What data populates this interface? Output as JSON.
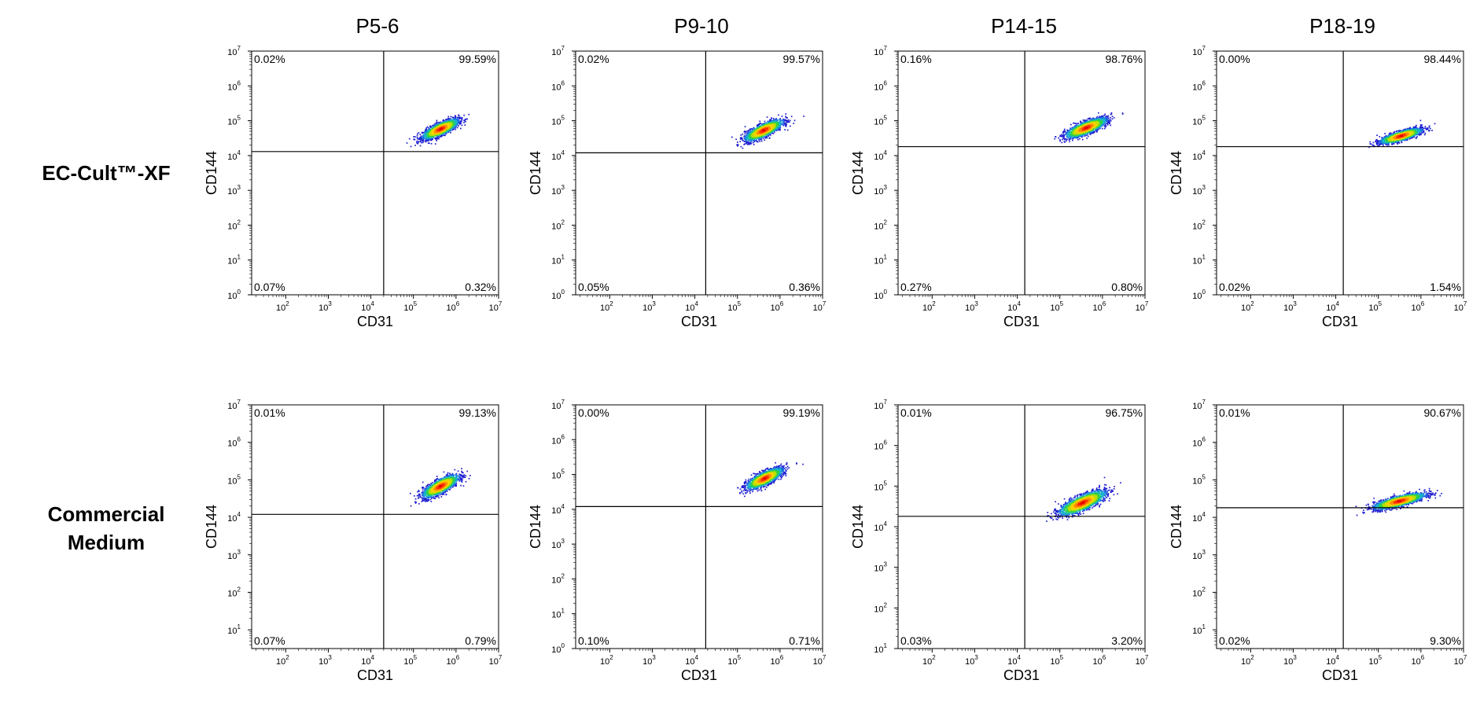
{
  "columns": [
    "P5-6",
    "P9-10",
    "P14-15",
    "P18-19"
  ],
  "rows": [
    "EC-Cult™-XF",
    "Commercial\nMedium"
  ],
  "chart_data": [
    {
      "type": "scatter",
      "row": "EC-Cult™-XF",
      "column": "P5-6",
      "xlabel": "CD31",
      "ylabel": "CD144",
      "x_log_range": [
        1.2,
        7
      ],
      "y_log_range": [
        0,
        7
      ],
      "x_ticks": [
        2,
        3,
        4,
        5,
        6,
        7
      ],
      "y_ticks": [
        0,
        1,
        2,
        3,
        4,
        5,
        6,
        7
      ],
      "gate": {
        "x": 20000,
        "y": 13000
      },
      "quadrants": {
        "ul": "0.02%",
        "ur": "99.59%",
        "ll": "0.07%",
        "lr": "0.32%"
      },
      "population_center": {
        "x": 420000,
        "y": 60000
      },
      "spread": {
        "x": 0.21,
        "y": 0.2
      }
    },
    {
      "type": "scatter",
      "row": "EC-Cult™-XF",
      "column": "P9-10",
      "xlabel": "CD31",
      "ylabel": "CD144",
      "x_log_range": [
        1.2,
        7
      ],
      "y_log_range": [
        0,
        7
      ],
      "x_ticks": [
        2,
        3,
        4,
        5,
        6,
        7
      ],
      "y_ticks": [
        0,
        1,
        2,
        3,
        4,
        5,
        6,
        7
      ],
      "gate": {
        "x": 18000,
        "y": 12000
      },
      "quadrants": {
        "ul": "0.02%",
        "ur": "99.57%",
        "ll": "0.05%",
        "lr": "0.36%"
      },
      "population_center": {
        "x": 400000,
        "y": 55000
      },
      "spread": {
        "x": 0.22,
        "y": 0.21
      }
    },
    {
      "type": "scatter",
      "row": "EC-Cult™-XF",
      "column": "P14-15",
      "xlabel": "CD31",
      "ylabel": "CD144",
      "x_log_range": [
        1.2,
        7
      ],
      "y_log_range": [
        0,
        7
      ],
      "x_ticks": [
        2,
        3,
        4,
        5,
        6,
        7
      ],
      "y_ticks": [
        0,
        1,
        2,
        3,
        4,
        5,
        6,
        7
      ],
      "gate": {
        "x": 15000,
        "y": 18000
      },
      "quadrants": {
        "ul": "0.16%",
        "ur": "98.76%",
        "ll": "0.27%",
        "lr": "0.80%"
      },
      "population_center": {
        "x": 400000,
        "y": 65000
      },
      "spread": {
        "x": 0.24,
        "y": 0.2
      }
    },
    {
      "type": "scatter",
      "row": "EC-Cult™-XF",
      "column": "P18-19",
      "xlabel": "CD31",
      "ylabel": "CD144",
      "x_log_range": [
        1.2,
        7
      ],
      "y_log_range": [
        0,
        7
      ],
      "x_ticks": [
        2,
        3,
        4,
        5,
        6,
        7
      ],
      "y_ticks": [
        0,
        1,
        2,
        3,
        4,
        5,
        6,
        7
      ],
      "gate": {
        "x": 15000,
        "y": 18000
      },
      "quadrants": {
        "ul": "0.00%",
        "ur": "98.44%",
        "ll": "0.02%",
        "lr": "1.54%"
      },
      "population_center": {
        "x": 330000,
        "y": 38000
      },
      "spread": {
        "x": 0.24,
        "y": 0.15
      }
    },
    {
      "type": "scatter",
      "row": "Commercial Medium",
      "column": "P5-6",
      "xlabel": "CD31",
      "ylabel": "CD144",
      "x_log_range": [
        1.2,
        7
      ],
      "y_log_range": [
        0.5,
        7
      ],
      "x_ticks": [
        2,
        3,
        4,
        5,
        6,
        7
      ],
      "y_ticks": [
        1,
        2,
        3,
        4,
        5,
        6,
        7
      ],
      "gate": {
        "x": 20000,
        "y": 12000
      },
      "quadrants": {
        "ul": "0.01%",
        "ur": "99.13%",
        "ll": "0.07%",
        "lr": "0.79%"
      },
      "population_center": {
        "x": 420000,
        "y": 70000
      },
      "spread": {
        "x": 0.21,
        "y": 0.21
      }
    },
    {
      "type": "scatter",
      "row": "Commercial Medium",
      "column": "P9-10",
      "xlabel": "CD31",
      "ylabel": "CD144",
      "x_log_range": [
        1.2,
        7
      ],
      "y_log_range": [
        0,
        7
      ],
      "x_ticks": [
        2,
        3,
        4,
        5,
        6,
        7
      ],
      "y_ticks": [
        0,
        1,
        2,
        3,
        4,
        5,
        6,
        7
      ],
      "gate": {
        "x": 18000,
        "y": 12000
      },
      "quadrants": {
        "ul": "0.00%",
        "ur": "99.19%",
        "ll": "0.10%",
        "lr": "0.71%"
      },
      "population_center": {
        "x": 420000,
        "y": 80000
      },
      "spread": {
        "x": 0.21,
        "y": 0.21
      }
    },
    {
      "type": "scatter",
      "row": "Commercial Medium",
      "column": "P14-15",
      "xlabel": "CD31",
      "ylabel": "CD144",
      "x_log_range": [
        1.2,
        7
      ],
      "y_log_range": [
        1,
        7
      ],
      "x_ticks": [
        2,
        3,
        4,
        5,
        6,
        7
      ],
      "y_ticks": [
        1,
        2,
        3,
        4,
        5,
        6,
        7
      ],
      "gate": {
        "x": 15000,
        "y": 18000
      },
      "quadrants": {
        "ul": "0.01%",
        "ur": "96.75%",
        "ll": "0.03%",
        "lr": "3.20%"
      },
      "population_center": {
        "x": 330000,
        "y": 40000
      },
      "spread": {
        "x": 0.27,
        "y": 0.21
      }
    },
    {
      "type": "scatter",
      "row": "Commercial Medium",
      "column": "P18-19",
      "xlabel": "CD31",
      "ylabel": "CD144",
      "x_log_range": [
        1.2,
        7
      ],
      "y_log_range": [
        0.5,
        7
      ],
      "x_ticks": [
        2,
        3,
        4,
        5,
        6,
        7
      ],
      "y_ticks": [
        1,
        2,
        3,
        4,
        5,
        6,
        7
      ],
      "gate": {
        "x": 15000,
        "y": 18000
      },
      "quadrants": {
        "ul": "0.01%",
        "ur": "90.67%",
        "ll": "0.02%",
        "lr": "9.30%"
      },
      "population_center": {
        "x": 300000,
        "y": 28000
      },
      "spread": {
        "x": 0.3,
        "y": 0.15
      }
    }
  ]
}
